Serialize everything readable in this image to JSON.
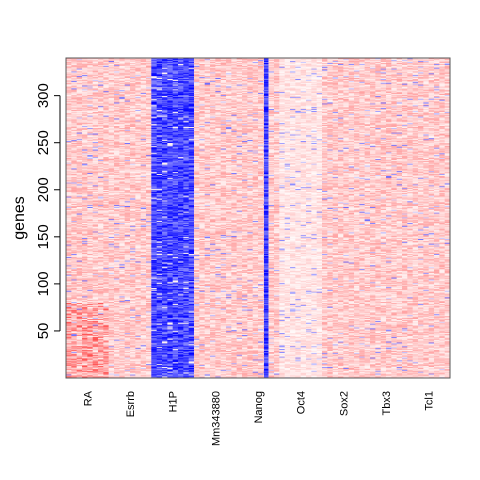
{
  "chart_data": {
    "type": "heatmap",
    "title": "",
    "xlabel": "",
    "ylabel": "genes",
    "n_rows": 340,
    "ylim": [
      0,
      340
    ],
    "y_ticks": [
      50,
      100,
      150,
      200,
      250,
      300
    ],
    "columns": [
      {
        "name": "RA",
        "slots": 2,
        "color_pattern": "light red, denser red streaks in lower rows"
      },
      {
        "name": "Esrrb",
        "slots": 2,
        "color_pattern": "light red"
      },
      {
        "name": "H1P",
        "slots": 2,
        "color_pattern": "strong blue"
      },
      {
        "name": "Mm343880",
        "slots": 2,
        "color_pattern": "light red"
      },
      {
        "name": "Nanog",
        "slots": 2,
        "color_pattern": "light red with a narrow strong blue stripe"
      },
      {
        "name": "Oct4",
        "slots": 2,
        "color_pattern": "pale / near white"
      },
      {
        "name": "Sox2",
        "slots": 2,
        "color_pattern": "light red"
      },
      {
        "name": "Tbx3",
        "slots": 2,
        "color_pattern": "light red"
      },
      {
        "name": "Tcl1",
        "slots": 2,
        "color_pattern": "light red"
      }
    ],
    "color_scale": {
      "low": "#0000ff",
      "mid": "#ffffff",
      "high": "#ff0000"
    },
    "grid": false,
    "legend": "none"
  }
}
